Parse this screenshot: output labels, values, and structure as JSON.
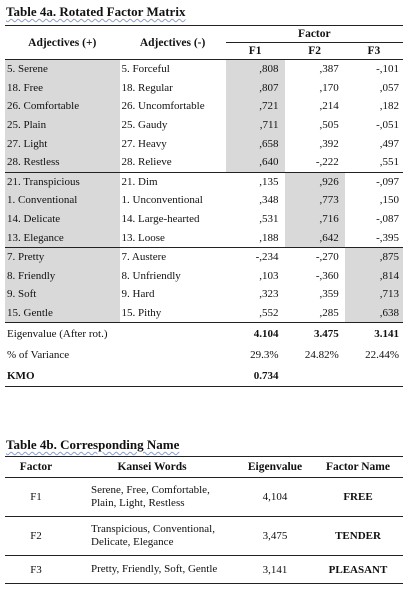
{
  "table4a": {
    "title": "Table 4a. Rotated Factor Matrix",
    "headers": {
      "adjectives_pos": "Adjectives (+)",
      "adjectives_neg": "Adjectives (-)",
      "factor": "Factor",
      "f1": "F1",
      "f2": "F2",
      "f3": "F3"
    },
    "rows": [
      {
        "pos": "5. Serene",
        "neg": "5. Forceful",
        "f1": ",808",
        "f2": ",387",
        "f3": "-,101"
      },
      {
        "pos": "18. Free",
        "neg": "18. Regular",
        "f1": ",807",
        "f2": ",170",
        "f3": ",057"
      },
      {
        "pos": "26. Comfortable",
        "neg": "26. Uncomfortable",
        "f1": ",721",
        "f2": ",214",
        "f3": ",182"
      },
      {
        "pos": "25. Plain",
        "neg": "25. Gaudy",
        "f1": ",711",
        "f2": ",505",
        "f3": "-,051"
      },
      {
        "pos": "27. Light",
        "neg": "27. Heavy",
        "f1": ",658",
        "f2": ",392",
        "f3": ",497"
      },
      {
        "pos": "28. Restless",
        "neg": "28. Relieve",
        "f1": ",640",
        "f2": "-,222",
        "f3": ",551"
      },
      {
        "pos": "21. Transpicious",
        "neg": "21. Dim",
        "f1": ",135",
        "f2": ",926",
        "f3": "-,097"
      },
      {
        "pos": "1. Conventional",
        "neg": "1. Unconventional",
        "f1": ",348",
        "f2": ",773",
        "f3": ",150"
      },
      {
        "pos": "14. Delicate",
        "neg": "14. Large-hearted",
        "f1": ",531",
        "f2": ",716",
        "f3": "-,087"
      },
      {
        "pos": "13. Elegance",
        "neg": "13. Loose",
        "f1": ",188",
        "f2": ",642",
        "f3": "-,395"
      },
      {
        "pos": "7. Pretty",
        "neg": "7. Austere",
        "f1": "-,234",
        "f2": "-,270",
        "f3": ",875"
      },
      {
        "pos": "8. Friendly",
        "neg": "8. Unfriendly",
        "f1": ",103",
        "f2": "-,360",
        "f3": ",814"
      },
      {
        "pos": "9. Soft",
        "neg": "9. Hard",
        "f1": ",323",
        "f2": ",359",
        "f3": ",713"
      },
      {
        "pos": "15. Gentle",
        "neg": "15. Pithy",
        "f1": ",552",
        "f2": ",285",
        "f3": ",638"
      }
    ],
    "eigenvalue": {
      "label": "Eigenvalue (After rot.)",
      "f1": "4.104",
      "f2": "3.475",
      "f3": "3.141"
    },
    "variance": {
      "label": "% of Variance",
      "f1": "29.3%",
      "f2": "24.82%",
      "f3": "22.44%"
    },
    "kmo": {
      "label": "KMO",
      "value": "0.734"
    },
    "highlight_color": "#d9d9d9"
  },
  "table4b": {
    "title": "Table 4b. Corresponding Name",
    "headers": {
      "factor": "Factor",
      "kansei": "Kansei Words",
      "eigenvalue": "Eigenvalue",
      "name": "Factor Name"
    },
    "rows": [
      {
        "factor": "F1",
        "kansei_line1": "Serene, Free, Comfortable,",
        "kansei_line2": "Plain, Light, Restless",
        "eigenvalue": "4,104",
        "name": "FREE"
      },
      {
        "factor": "F2",
        "kansei_line1": "Transpicious, Conventional,",
        "kansei_line2": "Delicate, Elegance",
        "eigenvalue": "3,475",
        "name": "TENDER"
      },
      {
        "factor": "F3",
        "kansei_line1": "Pretty, Friendly, Soft, Gentle",
        "kansei_line2": "",
        "eigenvalue": "3,141",
        "name": "PLEASANT"
      }
    ]
  }
}
